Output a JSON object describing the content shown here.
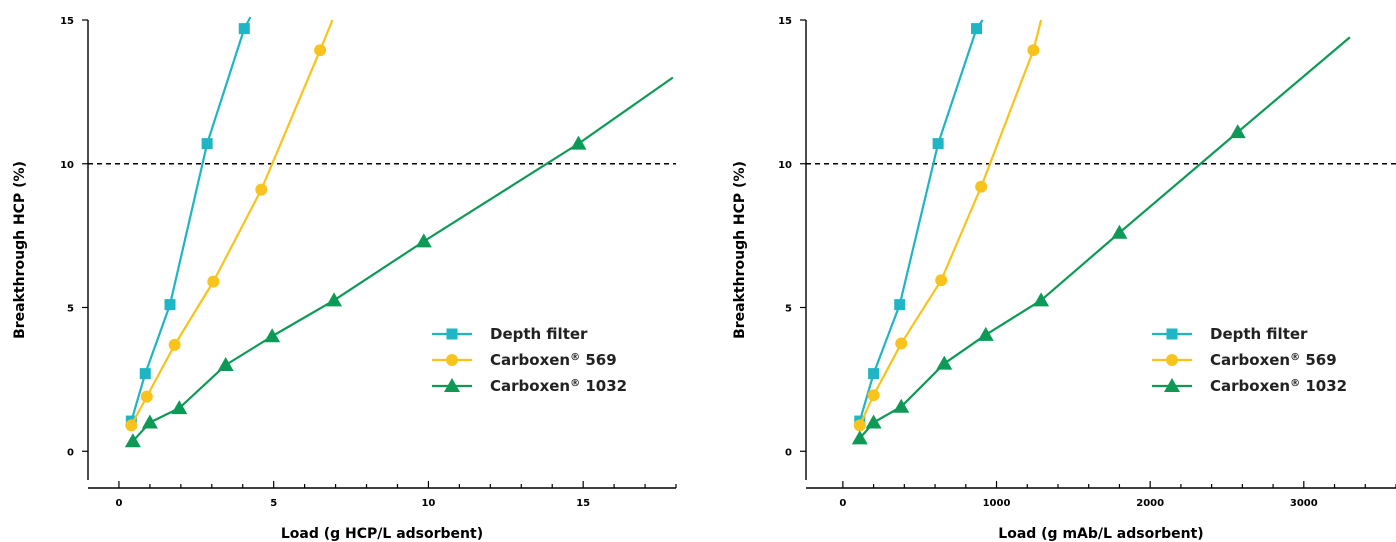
{
  "chart_data": [
    {
      "type": "line",
      "xlabel": "Load (g HCP/L adsorbent)",
      "ylabel": "Breakthrough HCP (%)",
      "xlim": [
        -1,
        18
      ],
      "ylim": [
        -1,
        15
      ],
      "xticks": [
        0,
        5,
        10,
        15
      ],
      "yticks": [
        0,
        5,
        10,
        15
      ],
      "reference_line_y": 10,
      "legend_position": "bottom-right",
      "series": [
        {
          "name": "Depth filter",
          "name_main": "Depth filter",
          "name_sup": "",
          "name_tail": "",
          "color": "#1fb5c5",
          "marker": "square",
          "x": [
            0.4,
            0.85,
            1.65,
            2.85,
            4.05
          ],
          "y": [
            1.05,
            2.7,
            5.1,
            10.7,
            14.7
          ],
          "line_end": [
            4.25,
            15.1
          ]
        },
        {
          "name": "Carboxen® 569",
          "name_main": "Carboxen",
          "name_sup": "®",
          "name_tail": " 569",
          "color": "#f8c31c",
          "marker": "circle",
          "x": [
            0.4,
            0.9,
            1.8,
            3.05,
            4.6,
            6.5
          ],
          "y": [
            0.9,
            1.9,
            3.7,
            5.9,
            9.1,
            13.95
          ],
          "line_end": [
            6.9,
            15.0
          ]
        },
        {
          "name": "Carboxen® 1032",
          "name_main": "Carboxen",
          "name_sup": "®",
          "name_tail": " 1032",
          "color": "#0d9a57",
          "marker": "triangle",
          "x": [
            0.45,
            1.0,
            1.95,
            3.45,
            4.95,
            6.95,
            9.85,
            14.85
          ],
          "y": [
            0.35,
            1.0,
            1.5,
            3.0,
            4.0,
            5.25,
            7.3,
            10.7
          ],
          "line_end": [
            17.9,
            13.0
          ]
        }
      ]
    },
    {
      "type": "line",
      "xlabel": "Load (g mAb/L adsorbent)",
      "ylabel": "Breakthrough HCP (%)",
      "xlim": [
        -240,
        3600
      ],
      "ylim": [
        -1,
        15
      ],
      "xticks": [
        0,
        1000,
        2000,
        3000
      ],
      "yticks": [
        0,
        5,
        10,
        15
      ],
      "reference_line_y": 10,
      "legend_position": "bottom-right",
      "series": [
        {
          "name": "Depth filter",
          "name_main": "Depth filter",
          "name_sup": "",
          "name_tail": "",
          "color": "#1fb5c5",
          "marker": "square",
          "x": [
            110,
            200,
            370,
            620,
            870
          ],
          "y": [
            1.05,
            2.7,
            5.1,
            10.7,
            14.7
          ],
          "line_end": [
            910,
            15.0
          ]
        },
        {
          "name": "Carboxen® 569",
          "name_main": "Carboxen",
          "name_sup": "®",
          "name_tail": " 569",
          "color": "#f8c31c",
          "marker": "circle",
          "x": [
            110,
            200,
            380,
            640,
            900,
            1240
          ],
          "y": [
            0.9,
            1.95,
            3.75,
            5.95,
            9.2,
            13.95
          ],
          "line_end": [
            1290,
            15.0
          ]
        },
        {
          "name": "Carboxen® 1032",
          "name_main": "Carboxen",
          "name_sup": "®",
          "name_tail": " 1032",
          "color": "#0d9a57",
          "marker": "triangle",
          "x": [
            110,
            200,
            380,
            660,
            930,
            1290,
            1800,
            2570
          ],
          "y": [
            0.45,
            1.0,
            1.55,
            3.05,
            4.05,
            5.25,
            7.6,
            11.1
          ],
          "line_end": [
            3300,
            14.4
          ]
        }
      ]
    }
  ]
}
